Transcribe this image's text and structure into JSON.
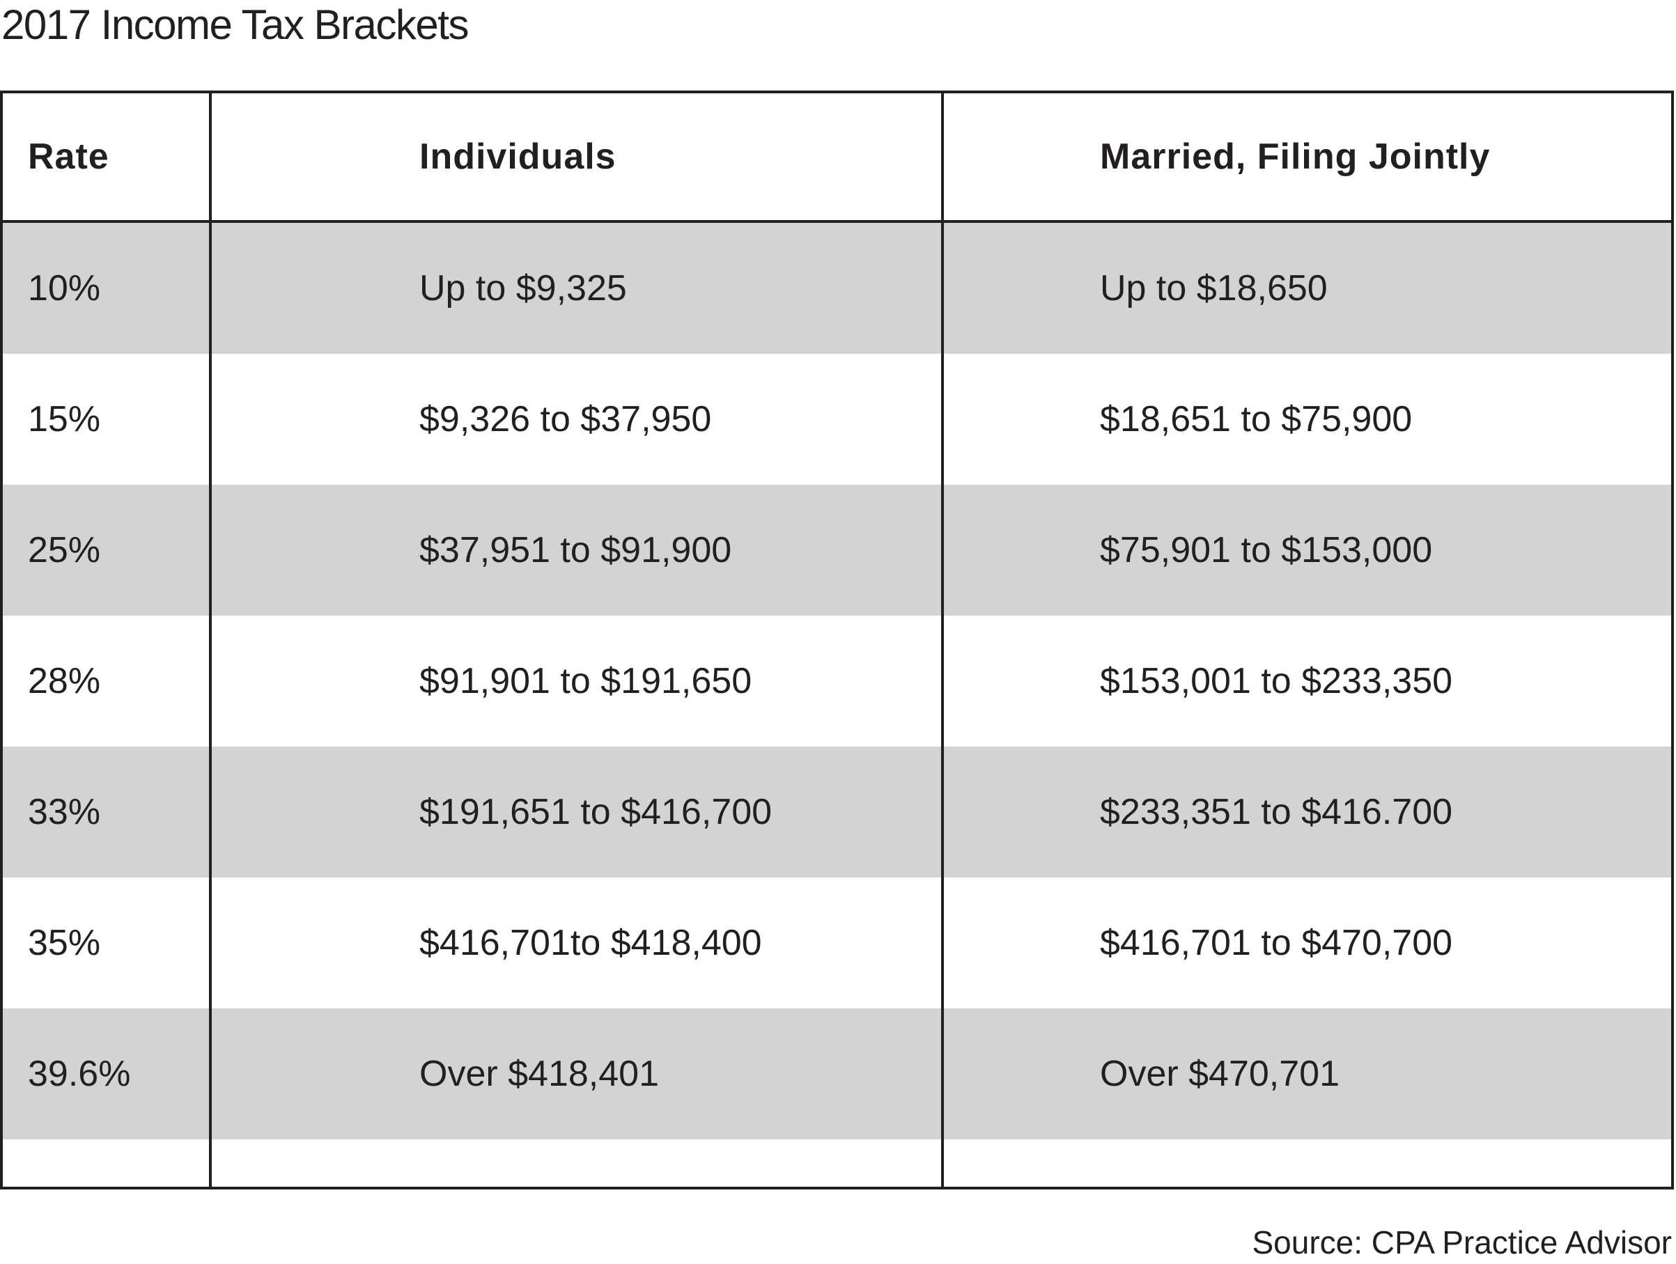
{
  "title": "2017 Income Tax Brackets",
  "table": {
    "headers": {
      "rate": "Rate",
      "individuals": "Individuals",
      "married": "Married, Filing Jointly"
    },
    "rows": [
      {
        "rate": "10%",
        "individuals": "Up to $9,325",
        "married": "Up to $18,650"
      },
      {
        "rate": "15%",
        "individuals": "$9,326 to $37,950",
        "married": "$18,651 to $75,900"
      },
      {
        "rate": "25%",
        "individuals": "$37,951 to $91,900",
        "married": "$75,901 to $153,000"
      },
      {
        "rate": "28%",
        "individuals": "$91,901 to $191,650",
        "married": "$153,001 to $233,350"
      },
      {
        "rate": "33%",
        "individuals": "$191,651 to $416,700",
        "married": "$233,351 to $416.700"
      },
      {
        "rate": "35%",
        "individuals": "$416,701to $418,400",
        "married": "$416,701 to $470,700"
      },
      {
        "rate": "39.6%",
        "individuals": "Over $418,401",
        "married": "Over $470,701"
      }
    ]
  },
  "source": "Source: CPA Practice Advisor",
  "colors": {
    "shaded_row": "#d1d3d4",
    "border": "#231f20",
    "text": "#231f20"
  }
}
